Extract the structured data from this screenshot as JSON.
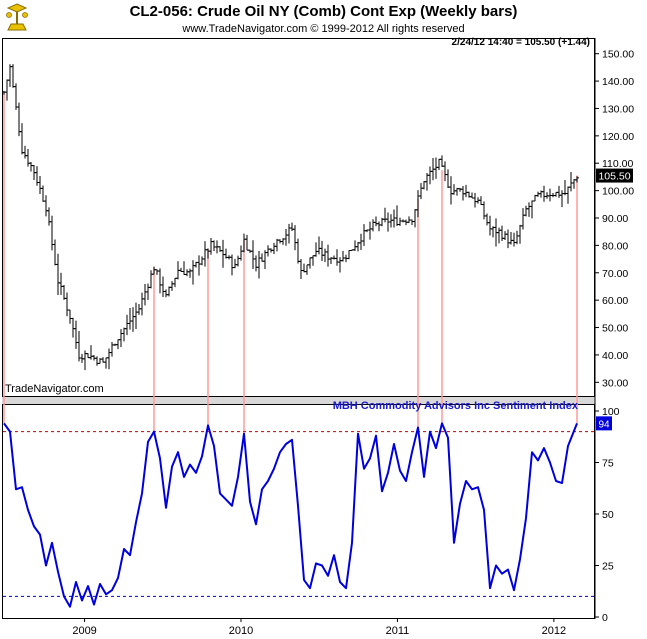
{
  "header": {
    "title": "CL2-056:  Crude Oil NY (Comb) Cont Exp  (Weekly bars)",
    "copyright": "www.TradeNavigator.com © 1999-2012 All rights reserved"
  },
  "colors": {
    "price_bars": "#000000",
    "sentiment_line": "#0000dd",
    "extreme_markers": "#ff9a9a",
    "threshold_lines": "#cc0000",
    "lower_threshold_line": "#0000cc",
    "last_value_box": "#000000",
    "sentiment_box": "#0000dd"
  },
  "logo": {
    "icon": "trade-navigator-logo-icon"
  },
  "chart_data": [
    {
      "type": "ohlc",
      "panel": "price",
      "watermark": "TradeNavigator.com",
      "price_readout": "2/24/12 14:40 = 105.50 (+1.44)",
      "last_value_label": "105.50",
      "ylim": [
        25,
        155
      ],
      "yticks": [
        30,
        40,
        50,
        60,
        70,
        80,
        90,
        100,
        110,
        120,
        130,
        140,
        150
      ],
      "ytick_labels": [
        "30.00",
        "40.00",
        "50.00",
        "60.00",
        "70.00",
        "80.00",
        "90.00",
        "100.00",
        "110.00",
        "120.00",
        "130.00",
        "140.00",
        "150.00"
      ],
      "x_start": "2008-06-27",
      "x_end": "2012-02-24",
      "anchors": [
        [
          "2008-06-27",
          136
        ],
        [
          "2008-07-11",
          145
        ],
        [
          "2008-08-08",
          115
        ],
        [
          "2008-09-05",
          107
        ],
        [
          "2008-10-03",
          94
        ],
        [
          "2008-10-31",
          67
        ],
        [
          "2008-11-28",
          54
        ],
        [
          "2008-12-19",
          40
        ],
        [
          "2009-01-09",
          40
        ],
        [
          "2009-02-13",
          37
        ],
        [
          "2009-03-13",
          45
        ],
        [
          "2009-04-10",
          51
        ],
        [
          "2009-05-08",
          57
        ],
        [
          "2009-06-12",
          72
        ],
        [
          "2009-07-10",
          61
        ],
        [
          "2009-08-07",
          71
        ],
        [
          "2009-09-04",
          70
        ],
        [
          "2009-10-23",
          80
        ],
        [
          "2009-11-20",
          77
        ],
        [
          "2009-12-18",
          72
        ],
        [
          "2010-01-08",
          82
        ],
        [
          "2010-02-05",
          73
        ],
        [
          "2010-03-19",
          81
        ],
        [
          "2010-04-30",
          86
        ],
        [
          "2010-05-21",
          70
        ],
        [
          "2010-06-25",
          78
        ],
        [
          "2010-07-23",
          76
        ],
        [
          "2010-08-27",
          75
        ],
        [
          "2010-10-08",
          83
        ],
        [
          "2010-11-05",
          87
        ],
        [
          "2010-12-10",
          89
        ],
        [
          "2011-01-07",
          89
        ],
        [
          "2011-02-04",
          90
        ],
        [
          "2011-03-04",
          104
        ],
        [
          "2011-04-08",
          110
        ],
        [
          "2011-05-06",
          100
        ],
        [
          "2011-06-03",
          100
        ],
        [
          "2011-07-08",
          96
        ],
        [
          "2011-08-05",
          86
        ],
        [
          "2011-08-26",
          85
        ],
        [
          "2011-09-30",
          80
        ],
        [
          "2011-10-28",
          93
        ],
        [
          "2011-11-25",
          98
        ],
        [
          "2011-12-23",
          99
        ],
        [
          "2012-01-27",
          99
        ],
        [
          "2012-02-24",
          105.5
        ]
      ]
    },
    {
      "type": "line",
      "panel": "sentiment",
      "title": "MBH Commodity Advisors Inc Sentiment Index",
      "last_value_label": "94",
      "ylim": [
        0,
        100
      ],
      "yticks": [
        0,
        25,
        50,
        75,
        100
      ],
      "ytick_labels": [
        "0",
        "25",
        "50",
        "75",
        "100"
      ],
      "upper_threshold": 90,
      "lower_threshold": 10,
      "x_start": "2008-06-27",
      "x_end": "2012-02-24",
      "series": [
        [
          "2008-06-27",
          94
        ],
        [
          "2008-07-11",
          90
        ],
        [
          "2008-07-25",
          62
        ],
        [
          "2008-08-08",
          63
        ],
        [
          "2008-08-22",
          52
        ],
        [
          "2008-09-05",
          44
        ],
        [
          "2008-09-19",
          40
        ],
        [
          "2008-10-03",
          25
        ],
        [
          "2008-10-17",
          36
        ],
        [
          "2008-10-31",
          22
        ],
        [
          "2008-11-14",
          10
        ],
        [
          "2008-11-28",
          5
        ],
        [
          "2008-12-12",
          17
        ],
        [
          "2008-12-26",
          8
        ],
        [
          "2009-01-09",
          15
        ],
        [
          "2009-01-23",
          6
        ],
        [
          "2009-02-06",
          16
        ],
        [
          "2009-02-20",
          11
        ],
        [
          "2009-03-06",
          13
        ],
        [
          "2009-03-20",
          19
        ],
        [
          "2009-04-03",
          33
        ],
        [
          "2009-04-17",
          30
        ],
        [
          "2009-05-01",
          46
        ],
        [
          "2009-05-15",
          60
        ],
        [
          "2009-05-29",
          85
        ],
        [
          "2009-06-12",
          90
        ],
        [
          "2009-06-26",
          77
        ],
        [
          "2009-07-10",
          53
        ],
        [
          "2009-07-24",
          73
        ],
        [
          "2009-08-07",
          80
        ],
        [
          "2009-08-21",
          68
        ],
        [
          "2009-09-04",
          74
        ],
        [
          "2009-09-18",
          70
        ],
        [
          "2009-10-02",
          78
        ],
        [
          "2009-10-16",
          93
        ],
        [
          "2009-10-30",
          83
        ],
        [
          "2009-11-13",
          60
        ],
        [
          "2009-11-27",
          57
        ],
        [
          "2009-12-11",
          54
        ],
        [
          "2009-12-25",
          68
        ],
        [
          "2010-01-08",
          89
        ],
        [
          "2010-01-22",
          56
        ],
        [
          "2010-02-05",
          45
        ],
        [
          "2010-02-19",
          62
        ],
        [
          "2010-03-05",
          66
        ],
        [
          "2010-03-19",
          72
        ],
        [
          "2010-04-02",
          80
        ],
        [
          "2010-04-16",
          84
        ],
        [
          "2010-04-30",
          86
        ],
        [
          "2010-05-14",
          54
        ],
        [
          "2010-05-28",
          18
        ],
        [
          "2010-06-11",
          14
        ],
        [
          "2010-06-25",
          26
        ],
        [
          "2010-07-09",
          25
        ],
        [
          "2010-07-23",
          20
        ],
        [
          "2010-08-06",
          30
        ],
        [
          "2010-08-20",
          17
        ],
        [
          "2010-09-03",
          14
        ],
        [
          "2010-09-17",
          36
        ],
        [
          "2010-10-01",
          89
        ],
        [
          "2010-10-15",
          72
        ],
        [
          "2010-10-29",
          77
        ],
        [
          "2010-11-12",
          88
        ],
        [
          "2010-11-26",
          61
        ],
        [
          "2010-12-10",
          70
        ],
        [
          "2010-12-24",
          84
        ],
        [
          "2011-01-07",
          71
        ],
        [
          "2011-01-21",
          66
        ],
        [
          "2011-02-04",
          80
        ],
        [
          "2011-02-18",
          92
        ],
        [
          "2011-03-04",
          68
        ],
        [
          "2011-03-18",
          90
        ],
        [
          "2011-04-01",
          82
        ],
        [
          "2011-04-15",
          94
        ],
        [
          "2011-04-29",
          87
        ],
        [
          "2011-05-13",
          36
        ],
        [
          "2011-05-27",
          55
        ],
        [
          "2011-06-10",
          66
        ],
        [
          "2011-06-24",
          62
        ],
        [
          "2011-07-08",
          63
        ],
        [
          "2011-07-22",
          52
        ],
        [
          "2011-08-05",
          14
        ],
        [
          "2011-08-19",
          25
        ],
        [
          "2011-09-02",
          21
        ],
        [
          "2011-09-16",
          23
        ],
        [
          "2011-09-30",
          13
        ],
        [
          "2011-10-14",
          28
        ],
        [
          "2011-10-28",
          48
        ],
        [
          "2011-11-11",
          80
        ],
        [
          "2011-11-25",
          76
        ],
        [
          "2011-12-09",
          82
        ],
        [
          "2011-12-23",
          75
        ],
        [
          "2012-01-06",
          66
        ],
        [
          "2012-01-20",
          65
        ],
        [
          "2012-02-03",
          83
        ],
        [
          "2012-02-24",
          94
        ]
      ]
    }
  ],
  "x_axis": {
    "labels": [
      "2009",
      "2010",
      "2011",
      "2012"
    ],
    "label_dates": [
      "2009-01-01",
      "2010-01-01",
      "2011-01-01",
      "2012-01-01"
    ]
  },
  "extreme_markers": {
    "dates": [
      "2008-06-27",
      "2009-06-12",
      "2009-10-16",
      "2010-01-08",
      "2011-02-18",
      "2011-04-15",
      "2012-02-24"
    ]
  }
}
